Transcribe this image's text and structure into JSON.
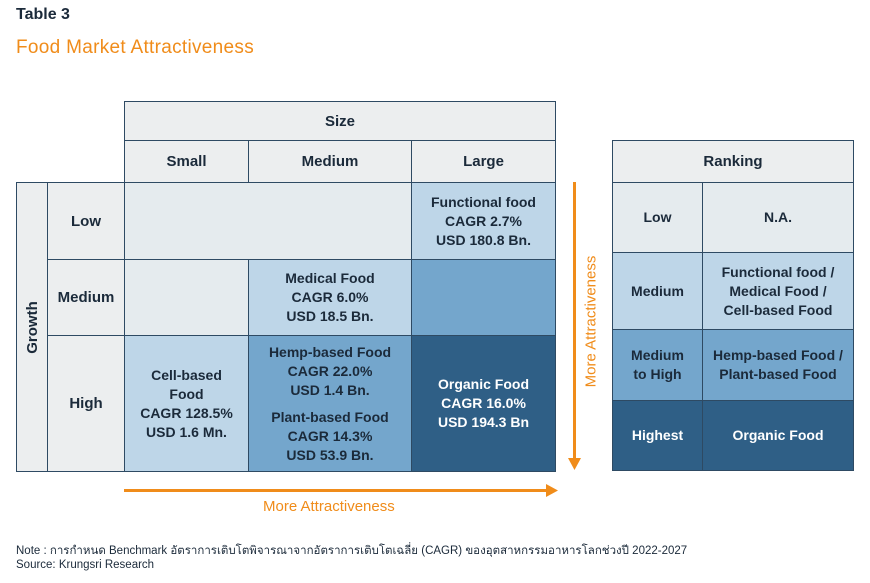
{
  "table_label": "Table 3",
  "title": "Food Market Attractiveness",
  "matrix": {
    "size_header": "Size",
    "size_cols": [
      "Small",
      "Medium",
      "Large"
    ],
    "growth_header": "Growth",
    "growth_rows": [
      "Low",
      "Medium",
      "High"
    ],
    "cells": {
      "low_large": [
        "Functional food",
        "CAGR 2.7%",
        "USD 180.8 Bn."
      ],
      "medium_medium": [
        "Medical Food",
        "CAGR 6.0%",
        "USD 18.5 Bn."
      ],
      "high_small": [
        "Cell-based",
        "Food",
        "CAGR 128.5%",
        "USD 1.6 Mn."
      ],
      "high_medium_a": [
        "Hemp-based Food",
        "CAGR 22.0%",
        "USD 1.4 Bn."
      ],
      "high_medium_b": [
        "Plant-based Food",
        "CAGR 14.3%",
        "USD 53.9 Bn."
      ],
      "high_large": [
        "Organic Food",
        "CAGR 16.0%",
        "USD 194.3 Bn"
      ]
    },
    "arrow_h_label": "More Attractiveness",
    "arrow_v_label": "More Attractiveness"
  },
  "ranking": {
    "header": "Ranking",
    "rows": [
      {
        "level": [
          "Low"
        ],
        "items": [
          "N.A."
        ]
      },
      {
        "level": [
          "Medium"
        ],
        "items": [
          "Functional food /",
          "Medical Food /",
          "Cell-based Food"
        ]
      },
      {
        "level": [
          "Medium",
          "to High"
        ],
        "items": [
          "Hemp-based Food /",
          "Plant-based Food"
        ]
      },
      {
        "level": [
          "Highest"
        ],
        "items": [
          "Organic Food"
        ]
      }
    ]
  },
  "note": "Note : การกำหนด Benchmark อัตราการเติบโตพิจารณาจากอัตราการเติบโตเฉลี่ย (CAGR) ของอุตสาหกรรมอาหารโลกช่วงปี 2022-2027",
  "source": "Source: Krungsri Research",
  "colors": {
    "accent": "#f08c1a",
    "level0": "#e5ebee",
    "level1": "#bed6e8",
    "level2": "#74a6cc",
    "level3": "#2f5f86"
  }
}
